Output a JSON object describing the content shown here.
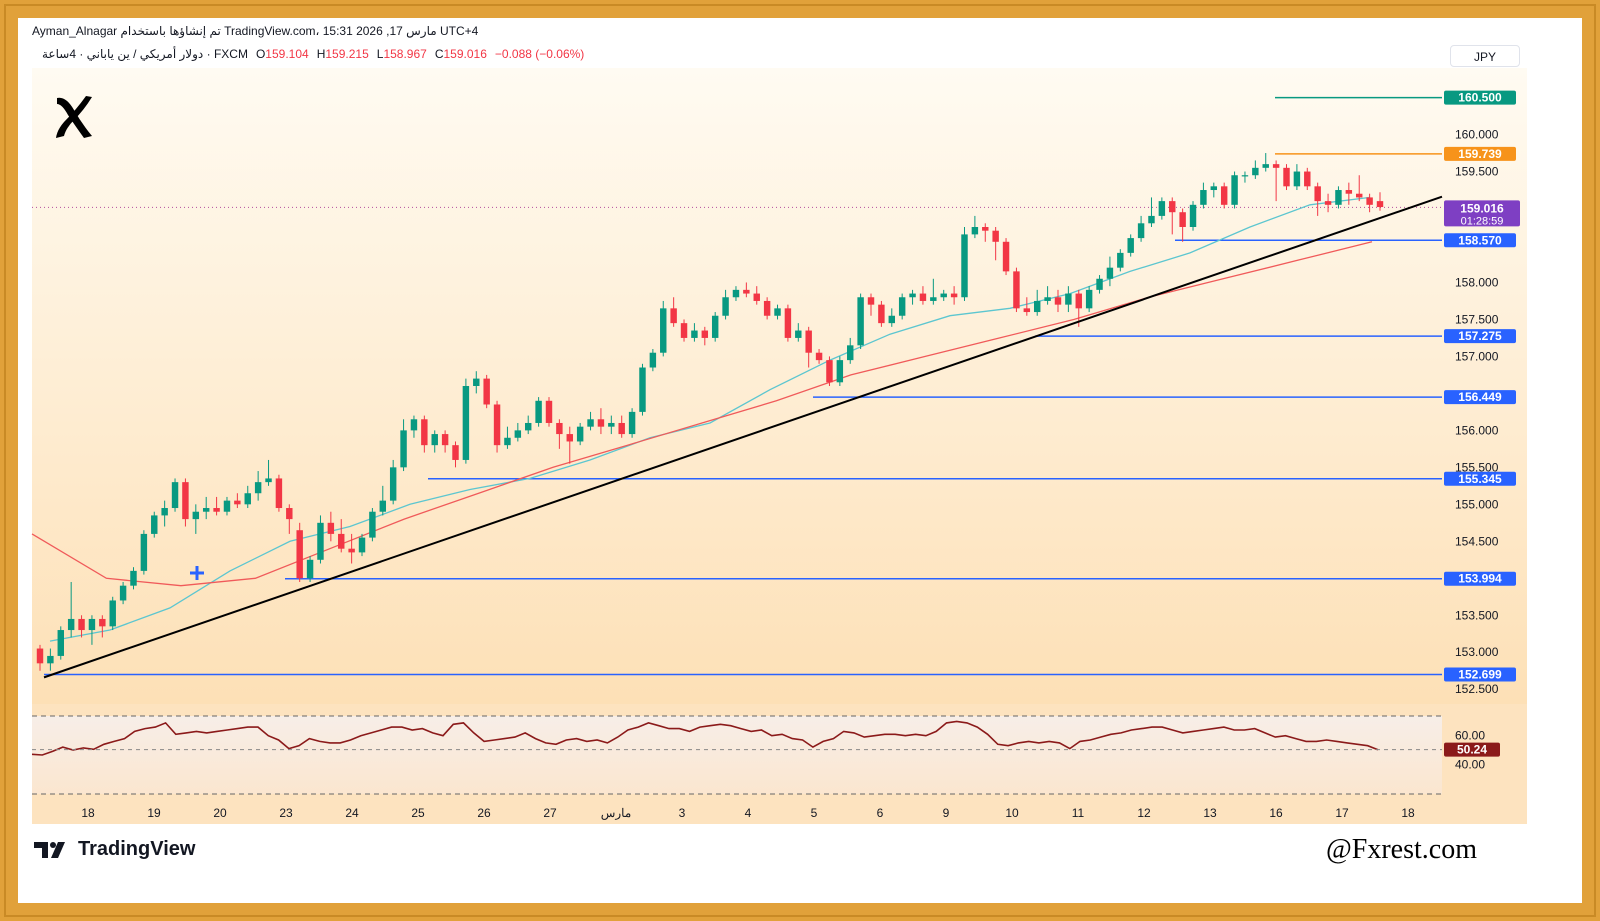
{
  "header": {
    "line1": "Ayman_Alnagar تم إنشاؤها باستخدام TradingView.com، 15:31 2026 ,17 مارس UTC+4",
    "symbol": "دولار أمريكي / ين ياباني · 4ساعة · FXCM",
    "ohlc": [
      {
        "key": "O",
        "value": "159.104"
      },
      {
        "key": "H",
        "value": "159.215"
      },
      {
        "key": "L",
        "value": "158.967"
      },
      {
        "key": "C",
        "value": "159.016"
      },
      {
        "key": "",
        "value": "−0.088 (−0.06%)"
      }
    ]
  },
  "currency_button": "JPY",
  "footer": {
    "brand": "TradingView",
    "watermark": "@Fxrest.com"
  },
  "colors": {
    "up": "#089981",
    "down": "#f23645",
    "level": "#2962ff",
    "trend": "#000000",
    "ema_fast": "#5cc6d0",
    "ema_slow": "#f05a5a",
    "rsi": "#8b1a1a",
    "price_tag": "#7e3fc3",
    "orange": "#f7931a",
    "teal": "#089981"
  },
  "chart_data": {
    "type": "candlestick",
    "title": "USD/JPY 4H",
    "ylim": [
      152.3,
      160.9
    ],
    "y_ticks": [
      "152.500",
      "153.000",
      "153.500",
      "154.500",
      "155.000",
      "155.500",
      "156.000",
      "157.000",
      "157.500",
      "158.000",
      "159.500",
      "160.000"
    ],
    "x_ticks": [
      "18",
      "19",
      "20",
      "23",
      "24",
      "25",
      "26",
      "27",
      "مارس",
      "3",
      "4",
      "5",
      "6",
      "9",
      "10",
      "11",
      "12",
      "13",
      "16",
      "17",
      "18"
    ],
    "candles": [
      [
        153.05,
        152.85,
        153.1,
        152.75
      ],
      [
        152.85,
        152.95,
        153.05,
        152.75
      ],
      [
        152.95,
        153.3,
        153.35,
        152.9
      ],
      [
        153.3,
        153.45,
        153.95,
        153.2
      ],
      [
        153.45,
        153.3,
        153.5,
        153.2
      ],
      [
        153.3,
        153.45,
        153.5,
        153.1
      ],
      [
        153.45,
        153.35,
        153.5,
        153.2
      ],
      [
        153.35,
        153.7,
        153.75,
        153.3
      ],
      [
        153.7,
        153.9,
        153.95,
        153.65
      ],
      [
        153.9,
        154.1,
        154.15,
        153.85
      ],
      [
        154.1,
        154.6,
        154.65,
        154.05
      ],
      [
        154.6,
        154.85,
        154.9,
        154.55
      ],
      [
        154.85,
        154.95,
        155.05,
        154.7
      ],
      [
        154.95,
        155.3,
        155.35,
        154.9
      ],
      [
        155.3,
        154.8,
        155.35,
        154.7
      ],
      [
        154.8,
        154.9,
        155.0,
        154.6
      ],
      [
        154.9,
        154.95,
        155.1,
        154.8
      ],
      [
        154.95,
        154.9,
        155.1,
        154.85
      ],
      [
        154.9,
        155.05,
        155.1,
        154.85
      ],
      [
        155.05,
        155.0,
        155.15,
        154.95
      ],
      [
        155.0,
        155.15,
        155.25,
        154.95
      ],
      [
        155.15,
        155.3,
        155.45,
        155.05
      ],
      [
        155.3,
        155.35,
        155.6,
        155.25
      ],
      [
        155.35,
        154.95,
        155.4,
        154.9
      ],
      [
        154.95,
        154.8,
        155.0,
        154.6
      ],
      [
        154.65,
        154.0,
        154.75,
        153.95
      ],
      [
        154.0,
        154.25,
        154.3,
        153.95
      ],
      [
        154.25,
        154.75,
        154.85,
        154.2
      ],
      [
        154.75,
        154.6,
        154.9,
        154.5
      ],
      [
        154.6,
        154.4,
        154.8,
        154.35
      ],
      [
        154.4,
        154.35,
        154.6,
        154.2
      ],
      [
        154.35,
        154.55,
        154.6,
        154.3
      ],
      [
        154.55,
        154.9,
        154.95,
        154.5
      ],
      [
        154.9,
        155.05,
        155.25,
        154.85
      ],
      [
        155.05,
        155.5,
        155.6,
        155.0
      ],
      [
        155.5,
        156.0,
        156.15,
        155.45
      ],
      [
        156.0,
        156.15,
        156.2,
        155.9
      ],
      [
        156.15,
        155.8,
        156.2,
        155.7
      ],
      [
        155.8,
        155.95,
        156.0,
        155.7
      ],
      [
        155.95,
        155.8,
        156.0,
        155.7
      ],
      [
        155.8,
        155.6,
        155.85,
        155.5
      ],
      [
        155.6,
        156.6,
        156.7,
        155.55
      ],
      [
        156.6,
        156.7,
        156.8,
        156.5
      ],
      [
        156.7,
        156.35,
        156.75,
        156.3
      ],
      [
        156.35,
        155.8,
        156.4,
        155.7
      ],
      [
        155.8,
        155.9,
        156.05,
        155.75
      ],
      [
        155.9,
        156.0,
        156.1,
        155.85
      ],
      [
        156.0,
        156.1,
        156.2,
        155.95
      ],
      [
        156.1,
        156.4,
        156.45,
        156.05
      ],
      [
        156.4,
        156.1,
        156.45,
        156.05
      ],
      [
        156.1,
        155.95,
        156.15,
        155.75
      ],
      [
        155.95,
        155.85,
        156.05,
        155.55
      ],
      [
        155.85,
        156.05,
        156.1,
        155.8
      ],
      [
        156.05,
        156.15,
        156.25,
        156.0
      ],
      [
        156.15,
        156.05,
        156.3,
        155.95
      ],
      [
        156.05,
        156.1,
        156.2,
        155.95
      ],
      [
        156.1,
        155.95,
        156.2,
        155.9
      ],
      [
        155.95,
        156.25,
        156.3,
        155.9
      ],
      [
        156.25,
        156.85,
        156.9,
        156.2
      ],
      [
        156.85,
        157.05,
        157.1,
        156.8
      ],
      [
        157.05,
        157.65,
        157.75,
        157.0
      ],
      [
        157.65,
        157.45,
        157.8,
        157.4
      ],
      [
        157.45,
        157.25,
        157.5,
        157.2
      ],
      [
        157.25,
        157.35,
        157.45,
        157.2
      ],
      [
        157.35,
        157.25,
        157.4,
        157.15
      ],
      [
        157.25,
        157.55,
        157.6,
        157.2
      ],
      [
        157.55,
        157.8,
        157.9,
        157.5
      ],
      [
        157.8,
        157.9,
        157.95,
        157.75
      ],
      [
        157.9,
        157.85,
        158.0,
        157.8
      ],
      [
        157.85,
        157.75,
        157.95,
        157.7
      ],
      [
        157.75,
        157.55,
        157.8,
        157.5
      ],
      [
        157.55,
        157.65,
        157.7,
        157.5
      ],
      [
        157.65,
        157.25,
        157.7,
        157.2
      ],
      [
        157.25,
        157.35,
        157.45,
        157.2
      ],
      [
        157.35,
        157.05,
        157.4,
        156.85
      ],
      [
        157.05,
        156.95,
        157.1,
        156.9
      ],
      [
        156.95,
        156.65,
        157.0,
        156.6
      ],
      [
        156.65,
        156.95,
        157.0,
        156.6
      ],
      [
        156.95,
        157.15,
        157.25,
        156.9
      ],
      [
        157.15,
        157.8,
        157.85,
        157.1
      ],
      [
        157.8,
        157.7,
        157.85,
        157.55
      ],
      [
        157.7,
        157.45,
        157.75,
        157.4
      ],
      [
        157.45,
        157.55,
        157.65,
        157.4
      ],
      [
        157.55,
        157.8,
        157.85,
        157.5
      ],
      [
        157.8,
        157.85,
        157.9,
        157.7
      ],
      [
        157.85,
        157.75,
        157.95,
        157.7
      ],
      [
        157.75,
        157.8,
        158.05,
        157.7
      ],
      [
        157.8,
        157.85,
        157.9,
        157.75
      ],
      [
        157.85,
        157.8,
        157.95,
        157.7
      ],
      [
        157.8,
        158.65,
        158.75,
        157.75
      ],
      [
        158.65,
        158.75,
        158.9,
        158.6
      ],
      [
        158.75,
        158.7,
        158.8,
        158.55
      ],
      [
        158.7,
        158.55,
        158.75,
        158.3
      ],
      [
        158.55,
        158.15,
        158.6,
        158.1
      ],
      [
        158.15,
        157.65,
        158.2,
        157.6
      ],
      [
        157.65,
        157.6,
        157.8,
        157.55
      ],
      [
        157.6,
        157.75,
        157.9,
        157.55
      ],
      [
        157.75,
        157.8,
        157.95,
        157.7
      ],
      [
        157.8,
        157.7,
        157.9,
        157.6
      ],
      [
        157.7,
        157.85,
        157.95,
        157.6
      ],
      [
        157.85,
        157.65,
        157.9,
        157.4
      ],
      [
        157.65,
        157.9,
        157.95,
        157.6
      ],
      [
        157.9,
        158.05,
        158.1,
        157.85
      ],
      [
        158.05,
        158.2,
        158.35,
        157.95
      ],
      [
        158.2,
        158.4,
        158.45,
        158.15
      ],
      [
        158.4,
        158.6,
        158.65,
        158.35
      ],
      [
        158.6,
        158.8,
        158.9,
        158.55
      ],
      [
        158.8,
        158.9,
        159.15,
        158.75
      ],
      [
        158.9,
        159.1,
        159.15,
        158.85
      ],
      [
        159.1,
        158.95,
        159.15,
        158.65
      ],
      [
        158.95,
        158.75,
        159.0,
        158.55
      ],
      [
        158.75,
        159.05,
        159.1,
        158.7
      ],
      [
        159.05,
        159.25,
        159.35,
        159.0
      ],
      [
        159.25,
        159.3,
        159.35,
        159.15
      ],
      [
        159.3,
        159.05,
        159.35,
        159.0
      ],
      [
        159.05,
        159.45,
        159.5,
        159.0
      ],
      [
        159.45,
        159.45,
        159.5,
        159.35
      ],
      [
        159.45,
        159.55,
        159.65,
        159.4
      ],
      [
        159.55,
        159.6,
        159.75,
        159.5
      ],
      [
        159.6,
        159.55,
        159.65,
        159.1
      ],
      [
        159.55,
        159.3,
        159.6,
        159.25
      ],
      [
        159.3,
        159.5,
        159.6,
        159.25
      ],
      [
        159.5,
        159.3,
        159.55,
        159.25
      ],
      [
        159.3,
        159.1,
        159.35,
        158.9
      ],
      [
        159.1,
        159.05,
        159.2,
        158.95
      ],
      [
        159.05,
        159.25,
        159.3,
        159.0
      ],
      [
        159.25,
        159.2,
        159.35,
        159.05
      ],
      [
        159.2,
        159.15,
        159.45,
        159.1
      ],
      [
        159.15,
        159.05,
        159.2,
        158.95
      ],
      [
        159.1,
        159.02,
        159.22,
        158.97
      ]
    ],
    "ema_fast": [
      153.15,
      153.3,
      153.6,
      154.1,
      154.5,
      154.7,
      155.0,
      155.2,
      155.35,
      155.6,
      155.9,
      156.1,
      156.55,
      156.95,
      157.3,
      157.55,
      157.65,
      157.85,
      158.15,
      158.4,
      158.75,
      159.05,
      159.15
    ],
    "ema_slow": [
      154.6,
      154.0,
      153.9,
      154.0,
      154.4,
      154.8,
      155.15,
      155.5,
      155.8,
      156.1,
      156.4,
      156.75,
      157.0,
      157.25,
      157.5,
      157.8,
      158.05,
      158.3,
      158.55
    ],
    "levels": [
      "160.500",
      "159.739",
      "158.570",
      "157.275",
      "156.449",
      "155.345",
      "153.994",
      "152.699"
    ],
    "last_price": "159.016",
    "countdown": "01:28:59",
    "trendline": {
      "from": 152.66,
      "to": 159.16
    },
    "rsi": {
      "ylim": [
        22,
        78
      ],
      "labels": [
        "60.00",
        "40.00"
      ],
      "last": "50.24",
      "values": [
        47,
        46.5,
        49,
        52,
        50,
        51.5,
        50.5,
        54,
        56,
        58,
        63,
        65,
        66,
        69,
        61,
        62,
        63,
        62,
        63,
        64,
        65,
        66,
        66,
        60,
        57,
        51,
        53,
        58,
        56,
        55,
        55,
        57,
        60,
        62,
        64,
        66,
        66,
        64,
        65,
        62,
        60,
        68,
        69,
        62,
        56,
        57,
        58,
        59,
        62,
        58,
        55,
        54,
        57,
        58,
        56,
        57,
        55,
        59,
        64,
        66,
        69,
        67,
        65,
        65,
        63,
        66,
        67,
        68,
        67,
        65,
        63,
        64,
        60,
        61,
        58,
        57,
        52,
        56,
        58,
        63,
        62,
        59,
        60,
        61,
        61,
        60,
        61,
        60,
        63,
        69,
        70,
        69,
        66,
        61,
        54,
        53,
        55,
        56,
        55,
        56,
        55,
        51,
        56,
        57,
        59,
        61,
        62,
        64,
        65,
        66,
        66,
        64,
        62,
        63,
        64,
        65,
        66,
        64,
        64,
        65,
        62,
        59,
        60,
        58,
        56,
        56,
        57,
        56,
        55,
        54,
        53,
        50.24
      ]
    }
  }
}
